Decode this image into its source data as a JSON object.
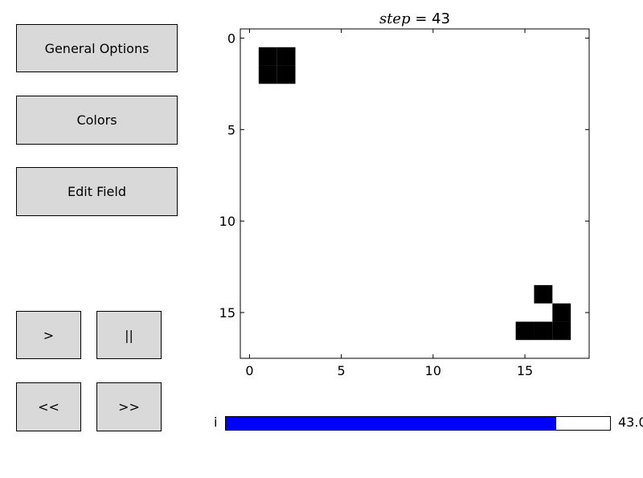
{
  "buttons": {
    "general_options": "General Options",
    "colors": "Colors",
    "edit_field": "Edit Field",
    "play": ">",
    "pause": "||",
    "step_back": "<<",
    "step_forward": ">>"
  },
  "plot": {
    "title_var": "step",
    "title_eq": " = ",
    "step_value": "43",
    "x_ticks": [
      0,
      5,
      10,
      15
    ],
    "y_ticks": [
      0,
      5,
      10,
      15
    ],
    "xlim": [
      -0.5,
      18.5
    ],
    "ylim": [
      17.5,
      -0.5
    ],
    "alive_color": "#000000",
    "dead_color": "#ffffff",
    "alive_cells": [
      [
        1,
        1
      ],
      [
        2,
        1
      ],
      [
        1,
        2
      ],
      [
        2,
        2
      ],
      [
        16,
        14
      ],
      [
        17,
        15
      ],
      [
        15,
        16
      ],
      [
        16,
        16
      ],
      [
        17,
        16
      ]
    ]
  },
  "slider": {
    "label": "i",
    "value_text": "43.0",
    "fraction": 0.86,
    "fill_color": "#0000ff"
  }
}
